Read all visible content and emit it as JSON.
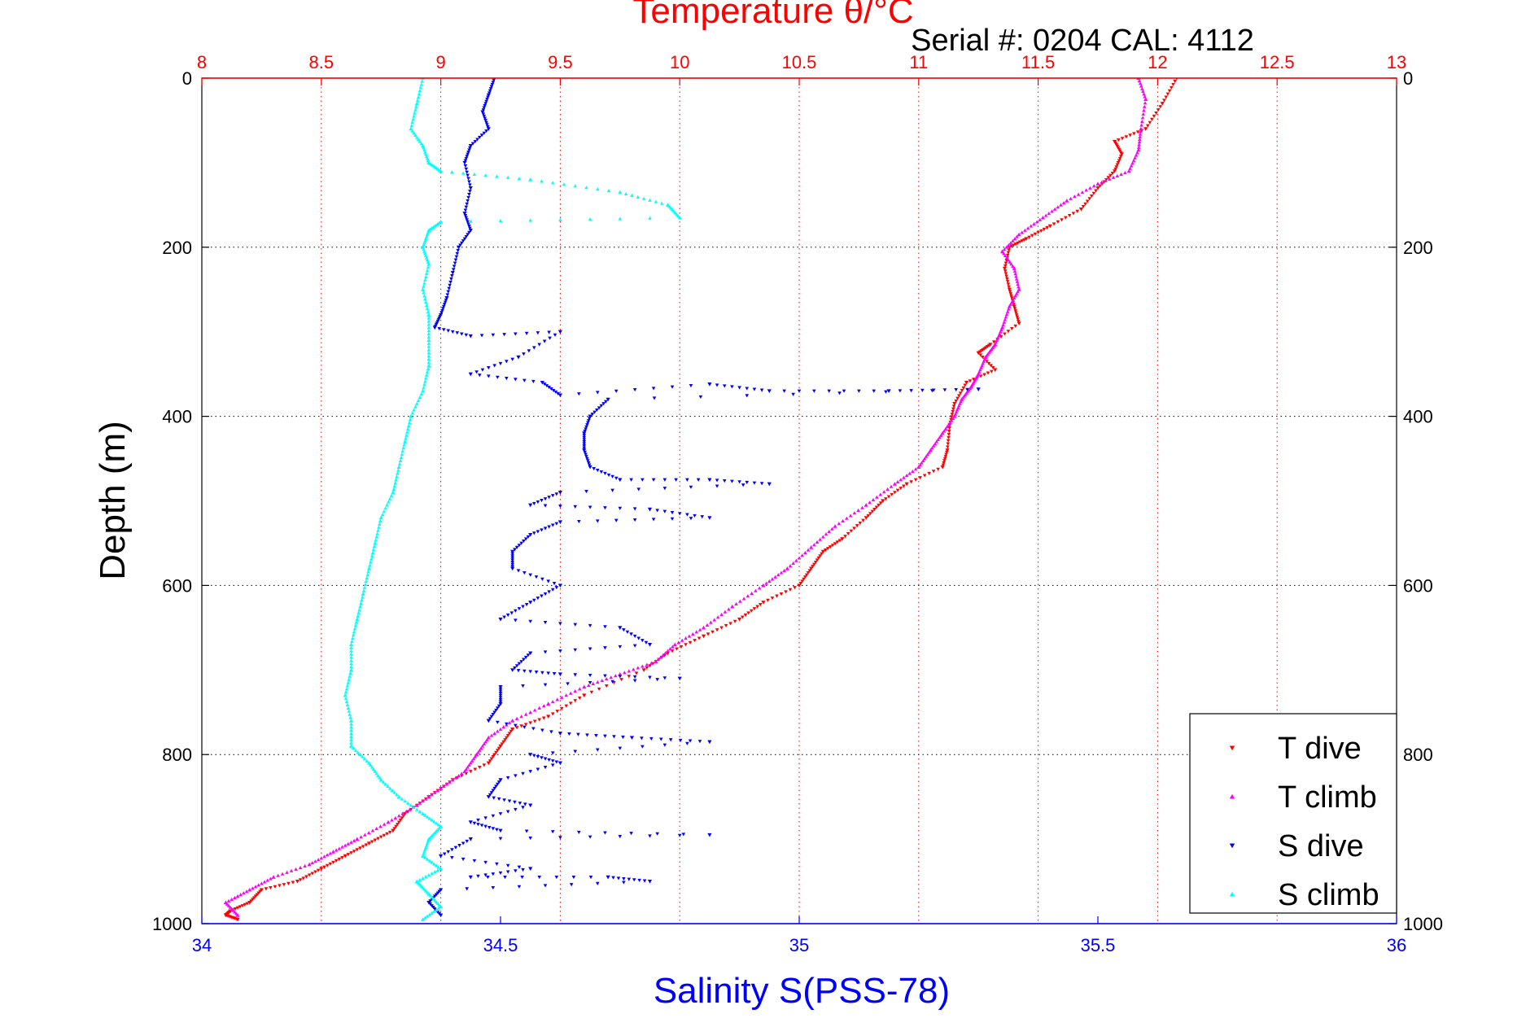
{
  "chart_data": {
    "type": "scatter",
    "title": "Temperature θ/°C",
    "subtitle": "Serial #: 0204  CAL: 4112",
    "xlabel": "Salinity S(PSS-78)",
    "ylabel": "Depth (m)",
    "x_bottom": {
      "label": "Salinity S(PSS-78)",
      "range": [
        34,
        36
      ],
      "ticks": [
        "34",
        "34.5",
        "35",
        "35.5",
        "36"
      ],
      "color": "#0000ff"
    },
    "x_top": {
      "label": "Temperature θ/°C",
      "range": [
        8,
        13
      ],
      "ticks": [
        "8",
        "8.5",
        "9",
        "9.5",
        "10",
        "10.5",
        "11",
        "11.5",
        "12",
        "12.5",
        "13"
      ],
      "color": "#ff0000"
    },
    "y": {
      "label": "Depth (m)",
      "range": [
        0,
        1000
      ],
      "reversed": true,
      "ticks_left": [
        "0",
        "200",
        "400",
        "600",
        "800",
        "1000"
      ],
      "ticks_right": [
        "0",
        "200",
        "400",
        "600",
        "800",
        "1000"
      ]
    },
    "grid": "dotted, vertical at temperature ticks (red), horizontal at depth ticks",
    "legend": {
      "placement": "bottom-right",
      "entries": [
        "T dive",
        "T climb",
        "S dive",
        "S climb"
      ]
    },
    "series": [
      {
        "name": "T dive",
        "axis": "temperature",
        "color": "#ff0000",
        "marker": "triangle-down",
        "points": [
          [
            12.08,
            0
          ],
          [
            12.02,
            30
          ],
          [
            11.95,
            60
          ],
          [
            11.82,
            75
          ],
          [
            11.85,
            90
          ],
          [
            11.82,
            110
          ],
          [
            11.75,
            130
          ],
          [
            11.68,
            155
          ],
          [
            11.55,
            175
          ],
          [
            11.45,
            190
          ],
          [
            11.38,
            200
          ],
          [
            11.36,
            225
          ],
          [
            11.38,
            250
          ],
          [
            11.4,
            270
          ],
          [
            11.42,
            290
          ],
          [
            11.3,
            315
          ],
          [
            11.25,
            325
          ],
          [
            11.32,
            345
          ],
          [
            11.2,
            360
          ],
          [
            11.15,
            385
          ],
          [
            11.13,
            410
          ],
          [
            11.12,
            440
          ],
          [
            11.1,
            460
          ],
          [
            10.95,
            480
          ],
          [
            10.85,
            500
          ],
          [
            10.78,
            520
          ],
          [
            10.68,
            545
          ],
          [
            10.6,
            560
          ],
          [
            10.55,
            580
          ],
          [
            10.5,
            600
          ],
          [
            10.35,
            620
          ],
          [
            10.25,
            640
          ],
          [
            10.1,
            660
          ],
          [
            9.95,
            680
          ],
          [
            9.85,
            700
          ],
          [
            9.6,
            730
          ],
          [
            9.45,
            755
          ],
          [
            9.3,
            770
          ],
          [
            9.25,
            790
          ],
          [
            9.2,
            810
          ],
          [
            9.05,
            830
          ],
          [
            8.95,
            850
          ],
          [
            8.85,
            870
          ],
          [
            8.8,
            890
          ],
          [
            8.7,
            905
          ],
          [
            8.6,
            920
          ],
          [
            8.5,
            935
          ],
          [
            8.4,
            950
          ],
          [
            8.25,
            960
          ],
          [
            8.2,
            975
          ],
          [
            8.12,
            985
          ],
          [
            8.1,
            990
          ],
          [
            8.15,
            995
          ]
        ]
      },
      {
        "name": "T climb",
        "axis": "temperature",
        "color": "#ff00ff",
        "marker": "triangle-up",
        "points": [
          [
            11.92,
            0
          ],
          [
            11.95,
            25
          ],
          [
            11.93,
            60
          ],
          [
            11.92,
            85
          ],
          [
            11.88,
            110
          ],
          [
            11.75,
            125
          ],
          [
            11.62,
            145
          ],
          [
            11.52,
            165
          ],
          [
            11.42,
            185
          ],
          [
            11.35,
            205
          ],
          [
            11.4,
            225
          ],
          [
            11.42,
            250
          ],
          [
            11.38,
            270
          ],
          [
            11.35,
            295
          ],
          [
            11.32,
            315
          ],
          [
            11.28,
            330
          ],
          [
            11.25,
            350
          ],
          [
            11.22,
            365
          ],
          [
            11.18,
            380
          ],
          [
            11.15,
            400
          ],
          [
            11.1,
            420
          ],
          [
            11.05,
            440
          ],
          [
            11.0,
            460
          ],
          [
            10.9,
            480
          ],
          [
            10.78,
            505
          ],
          [
            10.65,
            530
          ],
          [
            10.55,
            555
          ],
          [
            10.45,
            580
          ],
          [
            10.35,
            600
          ],
          [
            10.22,
            625
          ],
          [
            10.1,
            650
          ],
          [
            9.98,
            670
          ],
          [
            9.9,
            690
          ],
          [
            9.75,
            705
          ],
          [
            9.6,
            720
          ],
          [
            9.45,
            740
          ],
          [
            9.3,
            760
          ],
          [
            9.2,
            780
          ],
          [
            9.15,
            800
          ],
          [
            9.1,
            820
          ],
          [
            9.0,
            840
          ],
          [
            8.9,
            860
          ],
          [
            8.78,
            880
          ],
          [
            8.65,
            900
          ],
          [
            8.55,
            915
          ],
          [
            8.45,
            930
          ],
          [
            8.3,
            945
          ],
          [
            8.2,
            960
          ],
          [
            8.1,
            975
          ],
          [
            8.15,
            990
          ]
        ]
      },
      {
        "name": "S dive",
        "axis": "salinity",
        "color": "#0000ff",
        "marker": "triangle-down",
        "points": [
          [
            34.49,
            0
          ],
          [
            34.48,
            20
          ],
          [
            34.47,
            40
          ],
          [
            34.48,
            60
          ],
          [
            34.45,
            80
          ],
          [
            34.44,
            100
          ],
          [
            34.45,
            130
          ],
          [
            34.44,
            160
          ],
          [
            34.45,
            180
          ],
          [
            34.43,
            200
          ],
          [
            34.42,
            230
          ],
          [
            34.41,
            260
          ],
          [
            34.4,
            280
          ],
          [
            34.39,
            295
          ],
          [
            34.45,
            305
          ],
          [
            34.6,
            300
          ],
          [
            34.53,
            330
          ],
          [
            34.45,
            350
          ],
          [
            34.57,
            360
          ],
          [
            34.6,
            375
          ],
          [
            34.85,
            362
          ],
          [
            34.95,
            370
          ],
          [
            35.15,
            370
          ],
          [
            35.3,
            368
          ],
          [
            34.68,
            380
          ],
          [
            34.65,
            400
          ],
          [
            34.64,
            420
          ],
          [
            34.64,
            440
          ],
          [
            34.65,
            460
          ],
          [
            34.7,
            475
          ],
          [
            34.85,
            475
          ],
          [
            34.95,
            480
          ],
          [
            34.6,
            490
          ],
          [
            34.55,
            505
          ],
          [
            34.75,
            510
          ],
          [
            34.85,
            520
          ],
          [
            34.6,
            525
          ],
          [
            34.55,
            540
          ],
          [
            34.52,
            560
          ],
          [
            34.52,
            580
          ],
          [
            34.6,
            600
          ],
          [
            34.55,
            620
          ],
          [
            34.5,
            640
          ],
          [
            34.7,
            650
          ],
          [
            34.75,
            670
          ],
          [
            34.55,
            680
          ],
          [
            34.52,
            700
          ],
          [
            34.6,
            705
          ],
          [
            34.8,
            710
          ],
          [
            34.5,
            720
          ],
          [
            34.5,
            740
          ],
          [
            34.48,
            760
          ],
          [
            34.6,
            775
          ],
          [
            34.72,
            780
          ],
          [
            34.85,
            785
          ],
          [
            34.55,
            800
          ],
          [
            34.6,
            810
          ],
          [
            34.5,
            830
          ],
          [
            34.48,
            850
          ],
          [
            34.55,
            860
          ],
          [
            34.45,
            880
          ],
          [
            34.5,
            890
          ],
          [
            34.85,
            895
          ],
          [
            34.45,
            900
          ],
          [
            34.4,
            920
          ],
          [
            34.55,
            935
          ],
          [
            34.45,
            945
          ],
          [
            34.68,
            945
          ],
          [
            34.75,
            950
          ],
          [
            34.4,
            960
          ],
          [
            34.38,
            975
          ],
          [
            34.4,
            990
          ]
        ]
      },
      {
        "name": "S climb",
        "axis": "salinity",
        "color": "#00ffff",
        "marker": "triangle-up",
        "points": [
          [
            34.37,
            0
          ],
          [
            34.36,
            30
          ],
          [
            34.35,
            60
          ],
          [
            34.37,
            80
          ],
          [
            34.38,
            100
          ],
          [
            34.4,
            110
          ],
          [
            34.55,
            120
          ],
          [
            34.7,
            135
          ],
          [
            34.78,
            150
          ],
          [
            34.8,
            165
          ],
          [
            34.4,
            170
          ],
          [
            34.38,
            180
          ],
          [
            34.37,
            200
          ],
          [
            34.38,
            220
          ],
          [
            34.37,
            250
          ],
          [
            34.38,
            280
          ],
          [
            34.38,
            310
          ],
          [
            34.38,
            340
          ],
          [
            34.37,
            370
          ],
          [
            34.35,
            400
          ],
          [
            34.34,
            430
          ],
          [
            34.33,
            460
          ],
          [
            34.32,
            490
          ],
          [
            34.3,
            520
          ],
          [
            34.29,
            550
          ],
          [
            34.28,
            580
          ],
          [
            34.27,
            610
          ],
          [
            34.26,
            640
          ],
          [
            34.25,
            670
          ],
          [
            34.25,
            700
          ],
          [
            34.24,
            730
          ],
          [
            34.25,
            760
          ],
          [
            34.25,
            790
          ],
          [
            34.28,
            810
          ],
          [
            34.3,
            830
          ],
          [
            34.33,
            850
          ],
          [
            34.37,
            870
          ],
          [
            34.4,
            885
          ],
          [
            34.38,
            900
          ],
          [
            34.37,
            920
          ],
          [
            34.4,
            935
          ],
          [
            34.36,
            950
          ],
          [
            34.38,
            965
          ],
          [
            34.4,
            980
          ],
          [
            34.37,
            995
          ]
        ]
      }
    ]
  }
}
